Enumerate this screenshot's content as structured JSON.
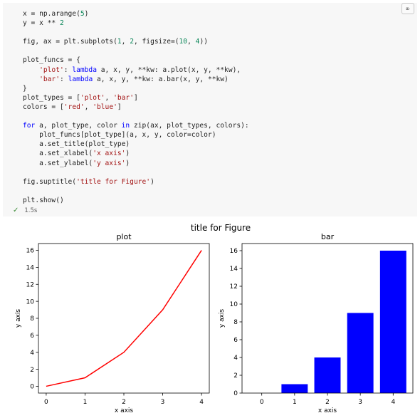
{
  "cell": {
    "toolbar_icon": "clear-output-icon",
    "toolbar_glyph": "⌦",
    "code_lines": [
      [
        {
          "t": "x = np.arange("
        },
        {
          "t": "5",
          "c": "num"
        },
        {
          "t": ")"
        }
      ],
      [
        {
          "t": "y = x ** "
        },
        {
          "t": "2",
          "c": "num"
        }
      ],
      [],
      [
        {
          "t": "fig, ax = plt.subplots("
        },
        {
          "t": "1",
          "c": "num"
        },
        {
          "t": ", "
        },
        {
          "t": "2",
          "c": "num"
        },
        {
          "t": ", figsize=("
        },
        {
          "t": "10",
          "c": "num"
        },
        {
          "t": ", "
        },
        {
          "t": "4",
          "c": "num"
        },
        {
          "t": "))"
        }
      ],
      [],
      [
        {
          "t": "plot_funcs = {"
        }
      ],
      [
        {
          "t": "    "
        },
        {
          "t": "'plot'",
          "c": "str"
        },
        {
          "t": ": "
        },
        {
          "t": "lambda",
          "c": "kw"
        },
        {
          "t": " a, x, y, **kw: a.plot(x, y, **kw),"
        }
      ],
      [
        {
          "t": "    "
        },
        {
          "t": "'bar'",
          "c": "str"
        },
        {
          "t": ": "
        },
        {
          "t": "lambda",
          "c": "kw"
        },
        {
          "t": " a, x, y, **kw: a.bar(x, y, **kw)"
        }
      ],
      [
        {
          "t": "}"
        }
      ],
      [
        {
          "t": "plot_types = ["
        },
        {
          "t": "'plot'",
          "c": "str"
        },
        {
          "t": ", "
        },
        {
          "t": "'bar'",
          "c": "str"
        },
        {
          "t": "]"
        }
      ],
      [
        {
          "t": "colors = ["
        },
        {
          "t": "'red'",
          "c": "str"
        },
        {
          "t": ", "
        },
        {
          "t": "'blue'",
          "c": "str"
        },
        {
          "t": "]"
        }
      ],
      [],
      [
        {
          "t": "for",
          "c": "kw"
        },
        {
          "t": " a, plot_type, color "
        },
        {
          "t": "in",
          "c": "kw"
        },
        {
          "t": " zip(ax, plot_types, colors):"
        }
      ],
      [
        {
          "t": "    plot_funcs[plot_type](a, x, y, color=color)"
        }
      ],
      [
        {
          "t": "    a.set_title(plot_type)"
        }
      ],
      [
        {
          "t": "    a.set_xlabel("
        },
        {
          "t": "'x axis'",
          "c": "str"
        },
        {
          "t": ")"
        }
      ],
      [
        {
          "t": "    a.set_ylabel("
        },
        {
          "t": "'y axis'",
          "c": "str"
        },
        {
          "t": ")"
        }
      ],
      [],
      [
        {
          "t": "fig.suptitle("
        },
        {
          "t": "'title for Figure'",
          "c": "str"
        },
        {
          "t": ")"
        }
      ],
      [],
      [
        {
          "t": "plt.show()"
        }
      ]
    ],
    "status_icon": "check-icon",
    "status_glyph": "✓",
    "exec_time": "1.5s"
  },
  "chart_data": {
    "suptitle": "title for Figure",
    "colors": {
      "line": "#ff0000",
      "bar": "#0000ff"
    },
    "subplots": [
      {
        "type": "line",
        "title": "plot",
        "xlabel": "x axis",
        "ylabel": "y axis",
        "x": [
          0,
          1,
          2,
          3,
          4
        ],
        "y": [
          0,
          1,
          4,
          9,
          16
        ],
        "xticks": [
          0,
          1,
          2,
          3,
          4
        ],
        "yticks": [
          0,
          2,
          4,
          6,
          8,
          10,
          12,
          14,
          16
        ],
        "xlim": [
          -0.2,
          4.2
        ],
        "ylim": [
          -0.8,
          16.8
        ],
        "color": "#ff0000"
      },
      {
        "type": "bar",
        "title": "bar",
        "xlabel": "x axis",
        "ylabel": "y axis",
        "x": [
          0,
          1,
          2,
          3,
          4
        ],
        "y": [
          0,
          1,
          4,
          9,
          16
        ],
        "xticks": [
          0,
          1,
          2,
          3,
          4
        ],
        "yticks": [
          0,
          2,
          4,
          6,
          8,
          10,
          12,
          14,
          16
        ],
        "xlim": [
          -0.6,
          4.6
        ],
        "ylim": [
          0,
          16.8
        ],
        "bar_width": 0.8,
        "color": "#0000ff"
      }
    ]
  }
}
